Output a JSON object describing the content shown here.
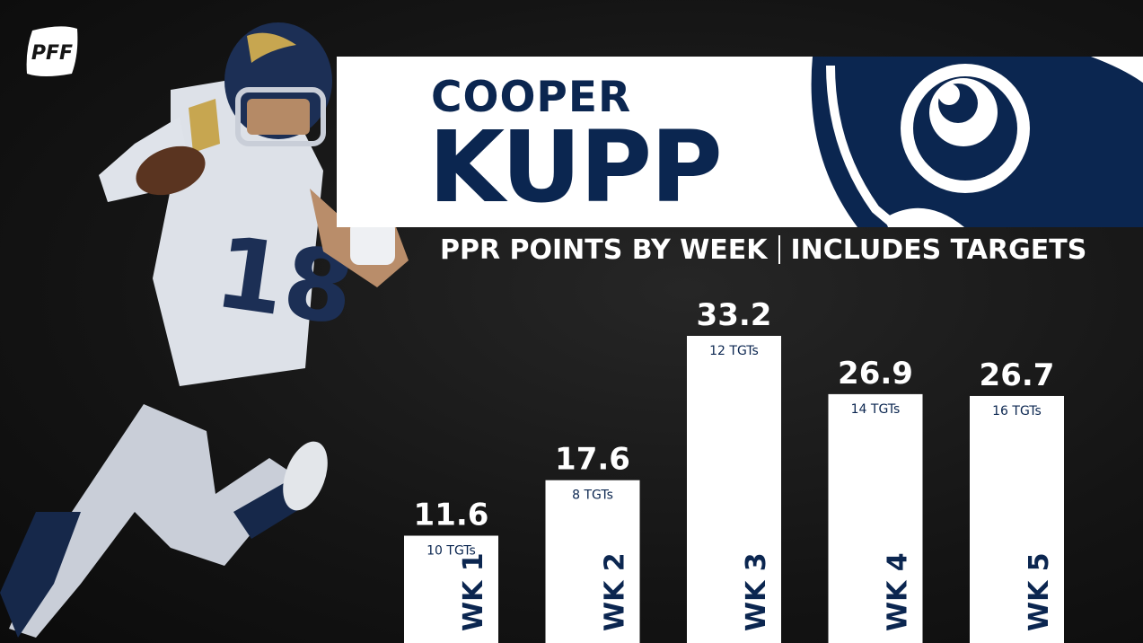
{
  "brand": {
    "logo_text": "PFF",
    "navy": "#0b2650",
    "white": "#ffffff",
    "background": "#151515"
  },
  "header": {
    "first_name": "COOPER",
    "last_name": "KUPP"
  },
  "subtitle": {
    "left": "PPR POINTS BY WEEK",
    "right": "INCLUDES TARGETS"
  },
  "player": {
    "jersey_number": "18"
  },
  "chart_data": {
    "type": "bar",
    "title": "PPR POINTS BY WEEK | INCLUDES TARGETS",
    "categories": [
      "WK 1",
      "WK 2",
      "WK 3",
      "WK 4",
      "WK 5"
    ],
    "values": [
      11.6,
      17.6,
      33.2,
      26.9,
      26.7
    ],
    "value_labels": [
      "11.6",
      "17.6",
      "33.2",
      "26.9",
      "26.7"
    ],
    "targets": [
      "10 TGTs",
      "8 TGTs",
      "12 TGTs",
      "14 TGTs",
      "16 TGTs"
    ],
    "ylim": [
      0,
      33.2
    ],
    "bar_color": "#ffffff",
    "label_color": "#0b2650",
    "grid": false,
    "legend": "none"
  }
}
